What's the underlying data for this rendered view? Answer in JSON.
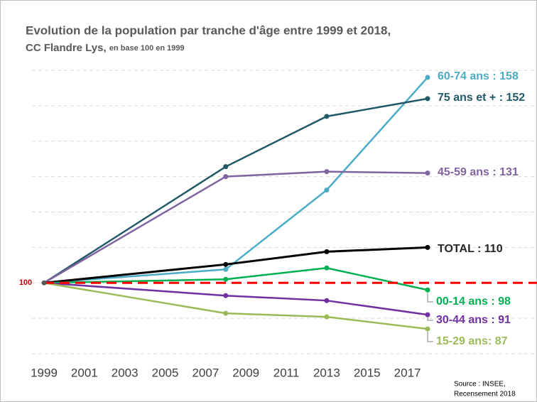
{
  "chart_data": {
    "type": "line",
    "title": "Evolution de la population par tranche d'âge entre 1999 et 2018,",
    "subtitle": "CC Flandre Lys,",
    "subtitle_note": "en base 100 en 1999",
    "source": [
      "Source : INSEE,",
      "Recensement 2018"
    ],
    "x": [
      1999,
      2008,
      2013,
      2018
    ],
    "xlim": [
      1999,
      2018
    ],
    "xticks": [
      1999,
      2001,
      2003,
      2005,
      2007,
      2009,
      2011,
      2013,
      2015,
      2017
    ],
    "ylim": [
      80,
      160
    ],
    "yticks": [
      100
    ],
    "ygrid": [
      80,
      90,
      100,
      110,
      120,
      130,
      140,
      150,
      160
    ],
    "reference_line": {
      "value": 100,
      "color": "#ff0000"
    },
    "series": [
      {
        "name": "60-74 ans : 158",
        "color": "#4bacc6",
        "values": [
          100,
          103.8,
          126.2,
          158
        ]
      },
      {
        "name": "75 ans et + :  152",
        "color": "#215968",
        "values": [
          100,
          132.8,
          147,
          152
        ]
      },
      {
        "name": "45-59 ans : 131",
        "color": "#8064a2",
        "values": [
          100,
          130,
          131.4,
          131
        ]
      },
      {
        "name": "TOTAL : 110",
        "color": "#000000",
        "values": [
          100,
          105.2,
          108.8,
          110
        ]
      },
      {
        "name": "00-14 ans : 98",
        "color": "#00b050",
        "values": [
          100,
          101,
          104.2,
          98
        ]
      },
      {
        "name": "30-44 ans : 91",
        "color": "#7030a0",
        "values": [
          100,
          96.4,
          95,
          91
        ]
      },
      {
        "name": "15-29 ans: 87",
        "color": "#9bbb59",
        "values": [
          100,
          91.4,
          90.4,
          87
        ]
      }
    ]
  }
}
